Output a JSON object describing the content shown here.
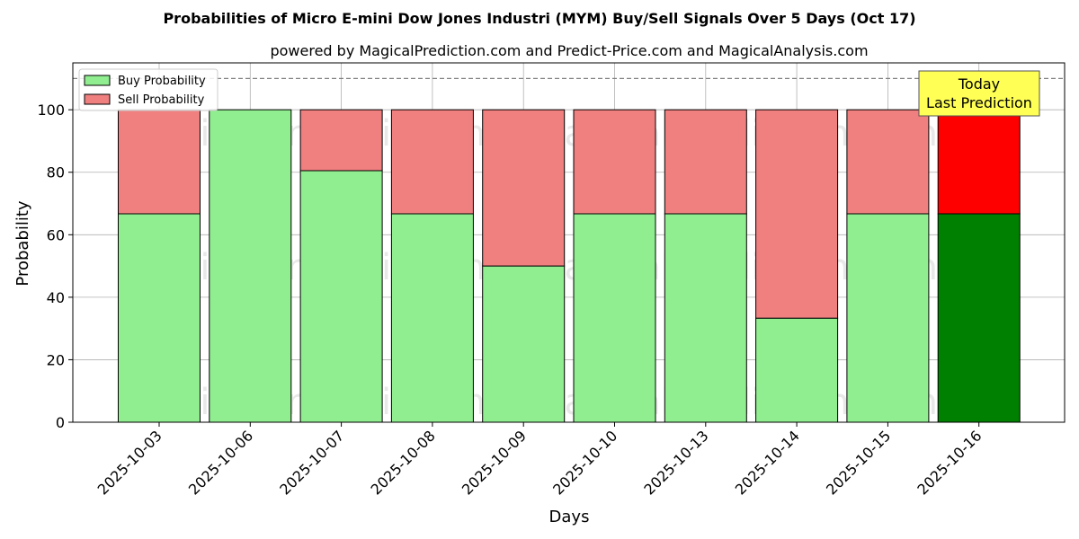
{
  "chart_data": {
    "type": "bar",
    "stacked": true,
    "title": "Probabilities of Micro E-mini Dow Jones Industri (MYM) Buy/Sell Signals Over 5 Days (Oct 17)",
    "subtitle": "powered by MagicalPrediction.com and Predict-Price.com and MagicalAnalysis.com",
    "xlabel": "Days",
    "ylabel": "Probability",
    "ylim": [
      0,
      115
    ],
    "yticks": [
      0,
      20,
      40,
      60,
      80,
      100
    ],
    "grid": true,
    "legend_position": "top-left",
    "categories": [
      "2025-10-03",
      "2025-10-06",
      "2025-10-07",
      "2025-10-08",
      "2025-10-09",
      "2025-10-10",
      "2025-10-13",
      "2025-10-14",
      "2025-10-15",
      "2025-10-16"
    ],
    "series": [
      {
        "name": "Buy Probability",
        "color": "#90ee90",
        "highlight_color": "#008000",
        "values": [
          66.7,
          100,
          80.5,
          66.7,
          50,
          66.7,
          66.7,
          33.3,
          66.7,
          66.7
        ]
      },
      {
        "name": "Sell Probability",
        "color": "#f08080",
        "highlight_color": "#ff0000",
        "values": [
          33.3,
          0,
          19.5,
          33.3,
          50,
          33.3,
          33.3,
          66.7,
          33.3,
          33.3
        ]
      }
    ],
    "highlight_index": 9,
    "reference_line": 110,
    "annotation": {
      "line1": "Today",
      "line2": "Last Prediction",
      "background": "#ffff55"
    },
    "watermarks": [
      "MagicalAnalysis.com",
      "MagicalPrediction.com"
    ]
  }
}
